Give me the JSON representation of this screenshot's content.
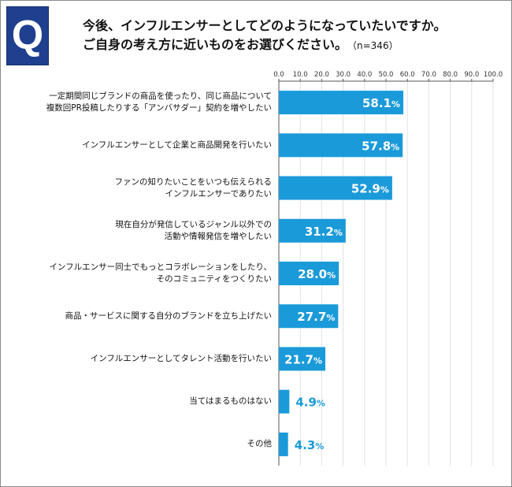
{
  "question_badge": "Q",
  "title_line1": "今後、インフルエンサーとしてどのようになっていたいですか。",
  "title_line2": "ご自身の考え方に近いものをお選びください。",
  "sample_size": "（n=346）",
  "colors": {
    "bar": "#1a9ad9",
    "badge": "#1f3f8f",
    "grid": "#d0d0d0"
  },
  "chart_data": {
    "type": "bar",
    "orientation": "horizontal",
    "title": "今後、インフルエンサーとしてどのようになっていたいですか。ご自身の考え方に近いものをお選びください。",
    "xlim": [
      0,
      100
    ],
    "ticks": [
      "0.0",
      "10.0",
      "20.0",
      "30.0",
      "40.0",
      "50.0",
      "60.0",
      "70.0",
      "80.0",
      "90.0",
      "100.0"
    ],
    "unit": "%",
    "categories": [
      [
        "一定期間同じブランドの商品を使ったり、同じ商品について",
        "複数回PR投稿したりする「アンバサダー」契約を増やしたい"
      ],
      [
        "インフルエンサーとして企業と商品開発を行いたい"
      ],
      [
        "ファンの知りたいことをいつも伝えられる",
        "インフルエンサーでありたい"
      ],
      [
        "現在自分が発信しているジャンル以外での",
        "活動や情報発信を増やしたい"
      ],
      [
        "インフルエンサー同士でもっとコラボレーションをしたり、",
        "そのコミュニティをつくりたい"
      ],
      [
        "商品・サービスに関する自分のブランドを立ち上げたい"
      ],
      [
        "インフルエンサーとしてタレント活動を行いたい"
      ],
      [
        "当てはまるものはない"
      ],
      [
        "その他"
      ]
    ],
    "values": [
      58.1,
      57.8,
      52.9,
      31.2,
      28.0,
      27.7,
      21.7,
      4.9,
      4.3
    ],
    "value_labels": [
      "58.1",
      "57.8",
      "52.9",
      "31.2",
      "28.0",
      "27.7",
      "21.7",
      "4.9",
      "4.3"
    ]
  }
}
